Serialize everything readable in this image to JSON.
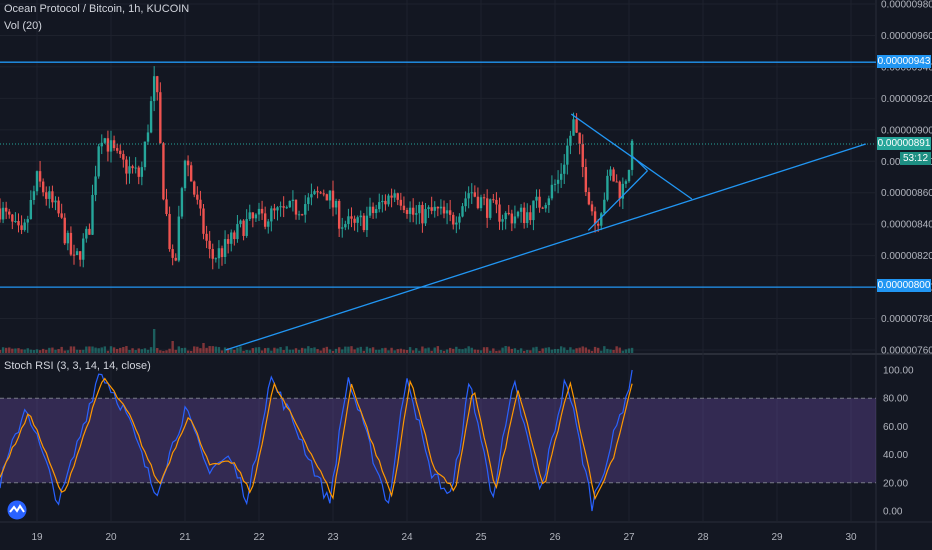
{
  "header": {
    "title": "Ocean Protocol / Bitcoin, 1h, KUCOIN",
    "volume_label": "Vol (20)"
  },
  "rsi": {
    "label": "Stoch RSI (3, 3, 14, 14, close)",
    "ticks": [
      "100.00",
      "80.00",
      "60.00",
      "40.00",
      "20.00",
      "0.00"
    ],
    "upper_band": 80,
    "lower_band": 20,
    "band_color": "#7e57c2",
    "k_color": "#2962ff",
    "d_color": "#ff9800"
  },
  "badges": {
    "line_high": "0.00000943",
    "last_price": "0.00000891",
    "timer": "53:12",
    "line_low": "0.00000800"
  },
  "chart_data": {
    "type": "candlestick",
    "title": "Ocean Protocol / Bitcoin, 1h, KUCOIN",
    "x_ticks": [
      "19",
      "20",
      "21",
      "22",
      "23",
      "24",
      "25",
      "26",
      "27",
      "28",
      "29",
      "30"
    ],
    "y_ticks": [
      "0.00000980",
      "0.00000960",
      "0.00000940",
      "0.00000920",
      "0.00000900",
      "0.00000880",
      "0.00000860",
      "0.00000840",
      "0.00000820",
      "0.00000800",
      "0.00000780",
      "0.00000760"
    ],
    "y_tick_values": [
      980,
      960,
      940,
      920,
      900,
      880,
      860,
      840,
      820,
      800,
      780,
      760
    ],
    "y_unit_note": "values in units of 1e-8 BTC",
    "ylim": [
      760,
      980
    ],
    "xlim_days": [
      18.5,
      30.3
    ],
    "horizontal_levels": [
      943,
      800
    ],
    "last_price_level": 891,
    "trendlines": [
      {
        "from": [
          21.55,
          760
        ],
        "to": [
          30.2,
          891
        ]
      },
      {
        "from": [
          26.22,
          910
        ],
        "to": [
          27.85,
          856
        ]
      },
      {
        "from": [
          26.45,
          836
        ],
        "to": [
          27.25,
          874
        ]
      },
      {
        "from": [
          27.05,
          883
        ],
        "to": [
          27.25,
          874
        ]
      }
    ],
    "anchors": [
      [
        18.5,
        850
      ],
      [
        18.8,
        830
      ],
      [
        19.0,
        868
      ],
      [
        19.3,
        845
      ],
      [
        19.5,
        815
      ],
      [
        19.7,
        835
      ],
      [
        19.85,
        900
      ],
      [
        20.1,
        880
      ],
      [
        20.4,
        870
      ],
      [
        20.6,
        935
      ],
      [
        20.7,
        865
      ],
      [
        20.85,
        805
      ],
      [
        21.0,
        885
      ],
      [
        21.2,
        845
      ],
      [
        21.35,
        818
      ],
      [
        21.55,
        825
      ],
      [
        21.8,
        840
      ],
      [
        22.1,
        845
      ],
      [
        22.4,
        848
      ],
      [
        22.7,
        855
      ],
      [
        22.9,
        862
      ],
      [
        23.1,
        842
      ],
      [
        23.3,
        838
      ],
      [
        23.6,
        850
      ],
      [
        23.85,
        862
      ],
      [
        24.1,
        845
      ],
      [
        24.4,
        848
      ],
      [
        24.6,
        842
      ],
      [
        24.85,
        862
      ],
      [
        25.1,
        850
      ],
      [
        25.35,
        845
      ],
      [
        25.6,
        846
      ],
      [
        25.85,
        856
      ],
      [
        26.05,
        868
      ],
      [
        26.25,
        904
      ],
      [
        26.4,
        870
      ],
      [
        26.55,
        840
      ],
      [
        26.75,
        872
      ],
      [
        26.9,
        860
      ],
      [
        27.05,
        888
      ]
    ],
    "rsi_k_anchors": [
      [
        18.5,
        20
      ],
      [
        18.85,
        75
      ],
      [
        19.3,
        5
      ],
      [
        19.85,
        100
      ],
      [
        20.2,
        70
      ],
      [
        20.6,
        12
      ],
      [
        21.0,
        72
      ],
      [
        21.3,
        30
      ],
      [
        21.6,
        38
      ],
      [
        21.85,
        8
      ],
      [
        22.15,
        95
      ],
      [
        22.45,
        65
      ],
      [
        22.95,
        5
      ],
      [
        23.2,
        95
      ],
      [
        23.5,
        45
      ],
      [
        23.75,
        5
      ],
      [
        24.0,
        98
      ],
      [
        24.3,
        30
      ],
      [
        24.6,
        10
      ],
      [
        24.85,
        92
      ],
      [
        25.15,
        10
      ],
      [
        25.45,
        90
      ],
      [
        25.8,
        12
      ],
      [
        26.15,
        95
      ],
      [
        26.5,
        5
      ],
      [
        26.75,
        45
      ],
      [
        27.05,
        98
      ]
    ],
    "rsi_d_anchors": [
      [
        18.5,
        25
      ],
      [
        18.9,
        70
      ],
      [
        19.35,
        10
      ],
      [
        19.9,
        95
      ],
      [
        20.25,
        68
      ],
      [
        20.65,
        18
      ],
      [
        21.05,
        68
      ],
      [
        21.35,
        32
      ],
      [
        21.65,
        35
      ],
      [
        21.9,
        12
      ],
      [
        22.2,
        90
      ],
      [
        22.5,
        62
      ],
      [
        23.0,
        10
      ],
      [
        23.25,
        90
      ],
      [
        23.55,
        45
      ],
      [
        23.8,
        10
      ],
      [
        24.05,
        94
      ],
      [
        24.35,
        32
      ],
      [
        24.65,
        14
      ],
      [
        24.9,
        88
      ],
      [
        25.2,
        14
      ],
      [
        25.5,
        86
      ],
      [
        25.85,
        16
      ],
      [
        26.2,
        92
      ],
      [
        26.55,
        8
      ],
      [
        26.8,
        40
      ],
      [
        27.05,
        92
      ]
    ],
    "volume_spikes": [
      [
        20.6,
        24
      ],
      [
        20.85,
        12
      ],
      [
        21.25,
        10
      ],
      [
        20.15,
        6
      ]
    ],
    "up_color": "#26a69a",
    "down_color": "#ef5350"
  }
}
